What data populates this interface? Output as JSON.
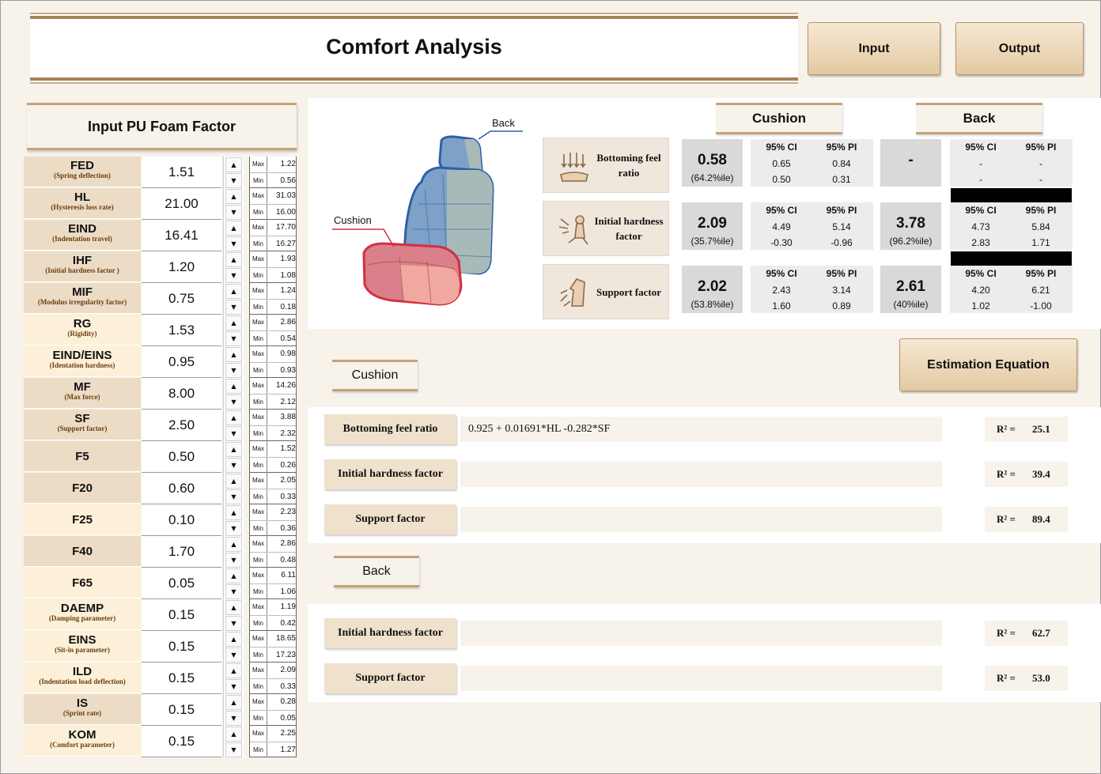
{
  "title": "Comfort Analysis",
  "nav": {
    "input": "Input",
    "output": "Output"
  },
  "left_header": "Input PU Foam Factor",
  "factors": [
    {
      "name": "FED",
      "sub": "(Spring deflection)",
      "value": "1.51",
      "max": "1.22",
      "min": "0.56",
      "shade": "#ecdcc6"
    },
    {
      "name": "HL",
      "sub": "(Hysteresis loss rate)",
      "value": "21.00",
      "max": "31.03",
      "min": "16.00",
      "shade": "#ecdcc6"
    },
    {
      "name": "EIND",
      "sub": "(Indentation travel)",
      "value": "16.41",
      "max": "17.70",
      "min": "16.27",
      "shade": "#ecdcc6"
    },
    {
      "name": "IHF",
      "sub": "(Initial hardness factor )",
      "value": "1.20",
      "max": "1.93",
      "min": "1.08",
      "shade": "#ecdcc6"
    },
    {
      "name": "MIF",
      "sub": "(Modulus irregularity factor)",
      "value": "0.75",
      "max": "1.24",
      "min": "0.18",
      "shade": "#ecdcc6"
    },
    {
      "name": "RG",
      "sub": "(Rigidity)",
      "value": "1.53",
      "max": "2.86",
      "min": "0.54",
      "shade": "#fcf1d8"
    },
    {
      "name": "EIND/EINS",
      "sub": "(Identation hardness)",
      "value": "0.95",
      "max": "0.98",
      "min": "0.93",
      "shade": "#fcf1d8"
    },
    {
      "name": "MF",
      "sub": "(Max force)",
      "value": "8.00",
      "max": "14.26",
      "min": "2.12",
      "shade": "#ecdcc6"
    },
    {
      "name": "SF",
      "sub": "(Support factor)",
      "value": "2.50",
      "max": "3.88",
      "min": "2.32",
      "shade": "#ecdcc6"
    },
    {
      "name": "F5",
      "sub": "",
      "value": "0.50",
      "max": "1.52",
      "min": "0.26",
      "shade": "#ecdcc6"
    },
    {
      "name": "F20",
      "sub": "",
      "value": "0.60",
      "max": "2.05",
      "min": "0.33",
      "shade": "#ecdcc6"
    },
    {
      "name": "F25",
      "sub": "",
      "value": "0.10",
      "max": "2.23",
      "min": "0.36",
      "shade": "#fcf1d8"
    },
    {
      "name": "F40",
      "sub": "",
      "value": "1.70",
      "max": "2.86",
      "min": "0.48",
      "shade": "#ecdcc6"
    },
    {
      "name": "F65",
      "sub": "",
      "value": "0.05",
      "max": "6.11",
      "min": "1.06",
      "shade": "#fcf1d8"
    },
    {
      "name": "DAEMP",
      "sub": "(Damping parameter)",
      "value": "0.15",
      "max": "1.19",
      "min": "0.42",
      "shade": "#fcf1d8"
    },
    {
      "name": "EINS",
      "sub": "(Sit-in parameter)",
      "value": "0.15",
      "max": "18.65",
      "min": "17.23",
      "shade": "#fcf1d8"
    },
    {
      "name": "ILD",
      "sub": "(Indentation load deflection)",
      "value": "0.15",
      "max": "2.09",
      "min": "0.33",
      "shade": "#fcf1d8"
    },
    {
      "name": "IS",
      "sub": "(Sprint rate)",
      "value": "0.15",
      "max": "0.28",
      "min": "0.05",
      "shade": "#ecdcc6"
    },
    {
      "name": "KOM",
      "sub": "(Comfort parameter)",
      "value": "0.15",
      "max": "2.25",
      "min": "1.27",
      "shade": "#fcf1d8"
    }
  ],
  "labels": {
    "max": "Max",
    "min": "Min"
  },
  "seat": {
    "back_label": "Back",
    "cushion_label": "Cushion"
  },
  "results": {
    "cushion_header": "Cushion",
    "back_header": "Back",
    "ci": "95% CI",
    "pi": "95% PI",
    "rows": [
      {
        "label": "Bottoming feel ratio",
        "cushion_value": "0.58",
        "cushion_pct": "(64.2%ile)",
        "c_ci_hi": "0.65",
        "c_pi_hi": "0.84",
        "c_ci_lo": "0.50",
        "c_pi_lo": "0.31",
        "back_value": "-",
        "back_pct": "",
        "b_ci_hi": "-",
        "b_pi_hi": "-",
        "b_ci_lo": "-",
        "b_pi_lo": "-"
      },
      {
        "label": "Initial hardness factor",
        "cushion_value": "2.09",
        "cushion_pct": "(35.7%ile)",
        "c_ci_hi": "4.49",
        "c_pi_hi": "5.14",
        "c_ci_lo": "-0.30",
        "c_pi_lo": "-0.96",
        "back_value": "3.78",
        "back_pct": "(96.2%ile)",
        "b_ci_hi": "4.73",
        "b_pi_hi": "5.84",
        "b_ci_lo": "2.83",
        "b_pi_lo": "1.71"
      },
      {
        "label": "Support factor",
        "cushion_value": "2.02",
        "cushion_pct": "(53.8%ile)",
        "c_ci_hi": "2.43",
        "c_pi_hi": "3.14",
        "c_ci_lo": "1.60",
        "c_pi_lo": "0.89",
        "back_value": "2.61",
        "back_pct": "(40%ile)",
        "b_ci_hi": "4.20",
        "b_pi_hi": "6.21",
        "b_ci_lo": "1.02",
        "b_pi_lo": "-1.00"
      }
    ]
  },
  "estimation": {
    "button": "Estimation Equation",
    "cushion_tab": "Cushion",
    "back_tab": "Back",
    "r2_label": "R² =",
    "cushion_rows": [
      {
        "label": "Bottoming feel ratio",
        "equation": "0.925  + 0.01691*HL -0.282*SF",
        "r2": "25.1"
      },
      {
        "label": "Initial hardness factor",
        "equation": "",
        "r2": "39.4"
      },
      {
        "label": "Support factor",
        "equation": "",
        "r2": "89.4"
      }
    ],
    "back_rows": [
      {
        "label": "Initial hardness factor",
        "equation": "",
        "r2": "62.7"
      },
      {
        "label": "Support factor",
        "equation": "",
        "r2": "53.0"
      }
    ]
  },
  "colors": {
    "accent_gold": "#c4a27c",
    "seat_back_blue": "#2f5fa8",
    "seat_cushion_red": "#d03040"
  }
}
